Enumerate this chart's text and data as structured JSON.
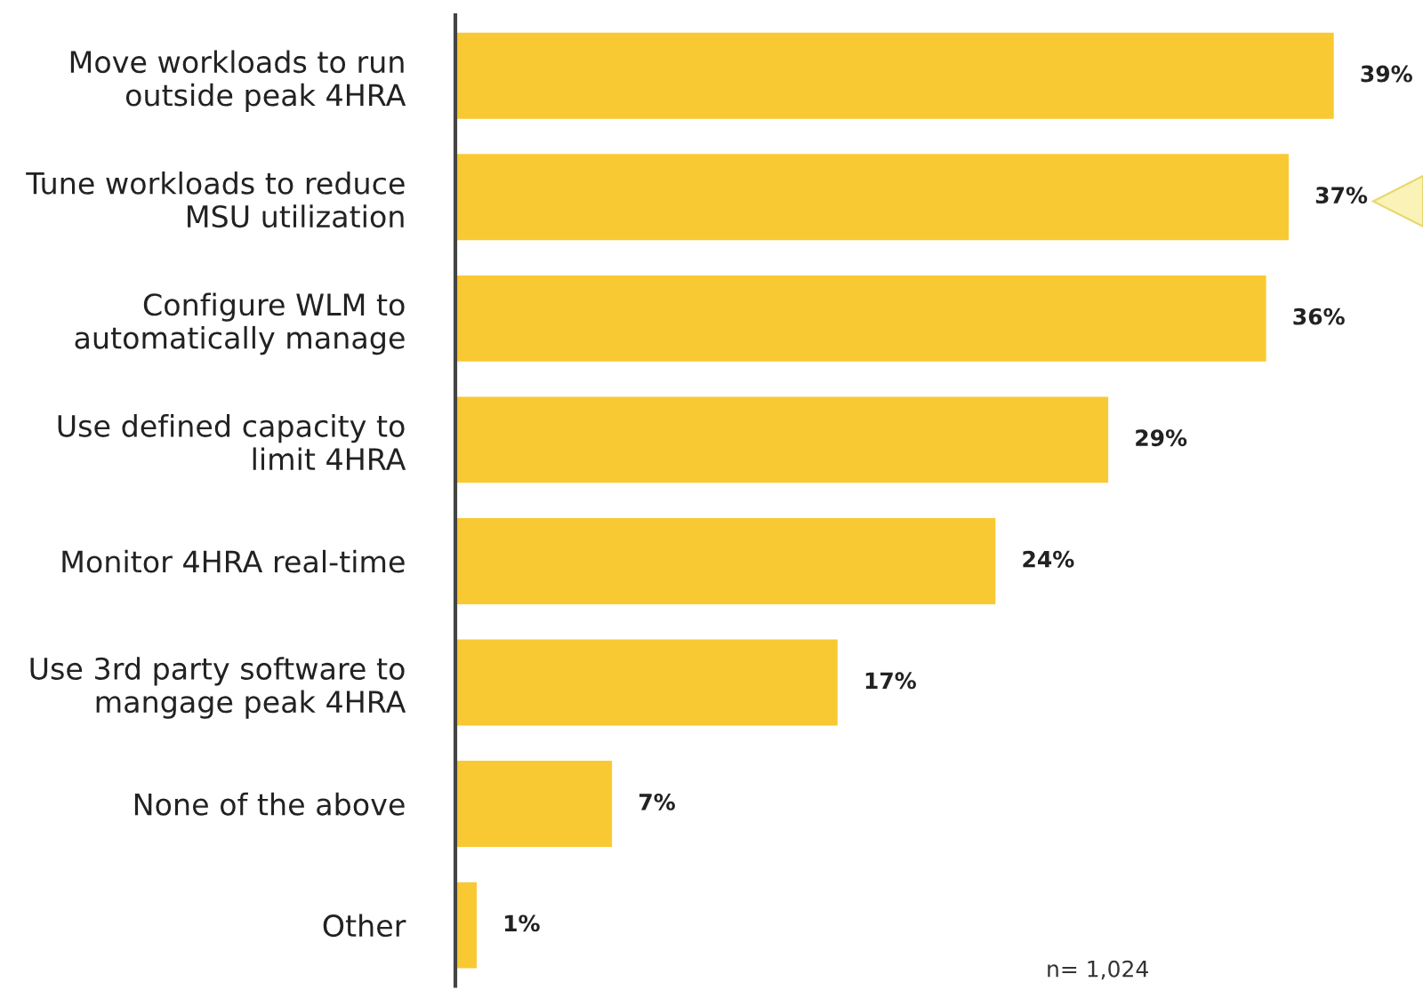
{
  "chart_data": {
    "type": "bar",
    "orientation": "horizontal",
    "categories": [
      "Move workloads to run\noutside peak 4HRA",
      "Tune workloads to reduce\nMSU utilization",
      "Configure WLM to\nautomatically manage",
      "Use defined capacity to\nlimit 4HRA",
      "Monitor 4HRA real-time",
      "Use 3rd party software to\nmangage peak 4HRA",
      "None of the above",
      "Other"
    ],
    "values": [
      39,
      37,
      36,
      29,
      24,
      17,
      7,
      1
    ],
    "value_labels": [
      "39%",
      "37%",
      "36%",
      "29%",
      "24%",
      "17%",
      "7%",
      "1%"
    ],
    "color": "#f9c933",
    "annotations": [
      "n= 1,024"
    ],
    "grid": false,
    "legend": false
  }
}
